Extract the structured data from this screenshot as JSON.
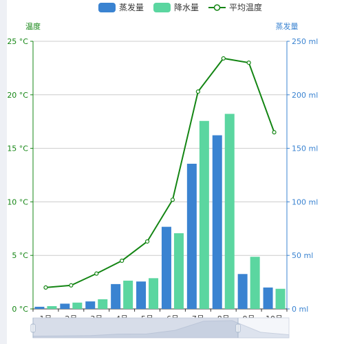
{
  "chart_data": {
    "type": "bar",
    "categories": [
      "1月",
      "2月",
      "3月",
      "4月",
      "5月",
      "6月",
      "7月",
      "8月",
      "9月",
      "10月"
    ],
    "series": [
      {
        "name": "蒸发量",
        "kind": "bar",
        "axis": "right",
        "color": "#3a83d1",
        "values": [
          2.0,
          4.9,
          7.0,
          23.2,
          25.6,
          76.7,
          135.6,
          162.2,
          32.6,
          20.0
        ]
      },
      {
        "name": "降水量",
        "kind": "bar",
        "axis": "right",
        "color": "#5bd6a0",
        "values": [
          2.6,
          5.9,
          9.0,
          26.4,
          28.7,
          70.7,
          175.6,
          182.2,
          48.7,
          18.8
        ]
      },
      {
        "name": "平均温度",
        "kind": "line",
        "axis": "left",
        "color": "#138513",
        "values": [
          2.0,
          2.2,
          3.3,
          4.5,
          6.3,
          10.2,
          20.3,
          23.4,
          23.0,
          16.5
        ]
      }
    ],
    "y_left": {
      "label": "温度",
      "unit": "°C",
      "ylim": [
        0,
        25
      ],
      "ticks": [
        0,
        5,
        10,
        15,
        20,
        25
      ],
      "color": "#138513"
    },
    "y_right": {
      "label": "蒸发量",
      "unit": "ml",
      "ylim": [
        0,
        250
      ],
      "ticks": [
        0,
        50,
        100,
        150,
        200,
        250
      ],
      "color": "#3a83d1"
    },
    "grid": true,
    "legend_position": "top-center",
    "data_zoom": true
  }
}
